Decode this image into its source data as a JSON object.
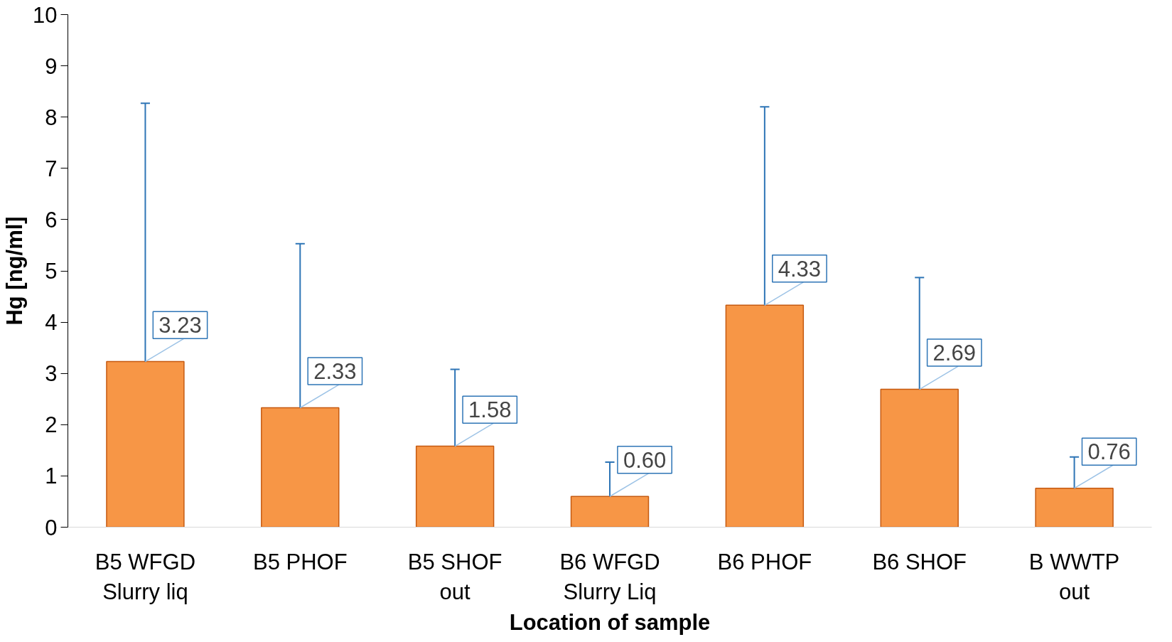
{
  "chart_data": {
    "type": "bar",
    "xlabel": "Location of sample",
    "ylabel": "Hg [ng/ml]",
    "categories": [
      "B5 WFGD Slurry liq",
      "B5 PHOF",
      "B5 SHOF out",
      "B6 WFGD Slurry Liq",
      "B6 PHOF",
      "B6 SHOF",
      "B WWTP out"
    ],
    "values": [
      3.23,
      2.33,
      1.58,
      0.6,
      4.33,
      2.69,
      0.76
    ],
    "value_labels": [
      "3.23",
      "2.33",
      "1.58",
      "0.60",
      "4.33",
      "2.69",
      "0.76"
    ],
    "errors": [
      [
        3.23,
        8.27
      ],
      [
        2.33,
        5.53
      ],
      [
        1.58,
        3.08
      ],
      [
        0.6,
        1.27
      ],
      [
        4.33,
        8.2
      ],
      [
        2.69,
        4.87
      ],
      [
        0.76,
        1.37
      ]
    ],
    "color": "#f79646",
    "ylim": [
      0,
      10
    ],
    "yticks": [
      0,
      1,
      2,
      3,
      4,
      5,
      6,
      7,
      8,
      9,
      10
    ],
    "grid": false
  }
}
